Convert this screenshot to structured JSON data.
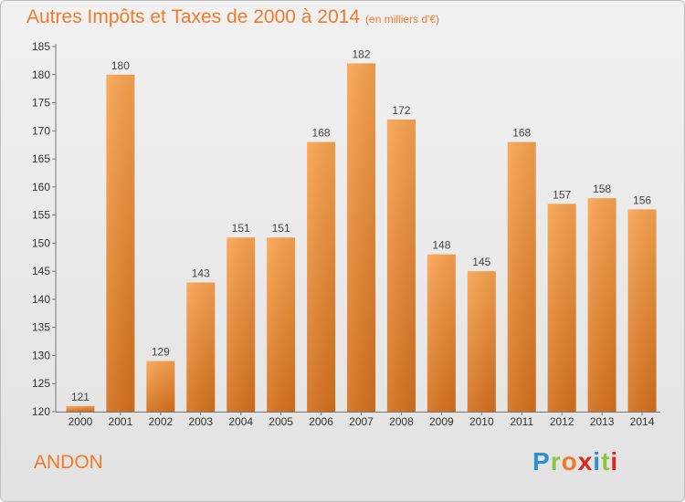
{
  "title": "Autres Impôts et Taxes de 2000 à 2014",
  "subtitle": "(en milliers d'€)",
  "place": "ANDON",
  "logo": {
    "text": "Proxiti",
    "colors": [
      "#2a8fd6",
      "#8cc63f",
      "#f07a2a",
      "#e2231a",
      "#2a8fd6",
      "#8cc63f",
      "#e2231a"
    ]
  },
  "colors": {
    "bar_top": "#f9a350",
    "bar_bottom": "#d4701c",
    "accent": "#f07a2a"
  },
  "chart_data": {
    "type": "bar",
    "categories": [
      "2000",
      "2001",
      "2002",
      "2003",
      "2004",
      "2005",
      "2006",
      "2007",
      "2008",
      "2009",
      "2010",
      "2011",
      "2012",
      "2013",
      "2014"
    ],
    "values": [
      121,
      180,
      129,
      143,
      151,
      151,
      168,
      182,
      172,
      148,
      145,
      168,
      157,
      158,
      156
    ],
    "ylim": [
      120,
      185
    ],
    "yticks": [
      120,
      125,
      130,
      135,
      140,
      145,
      150,
      155,
      160,
      165,
      170,
      175,
      180,
      185
    ],
    "grid": false
  }
}
